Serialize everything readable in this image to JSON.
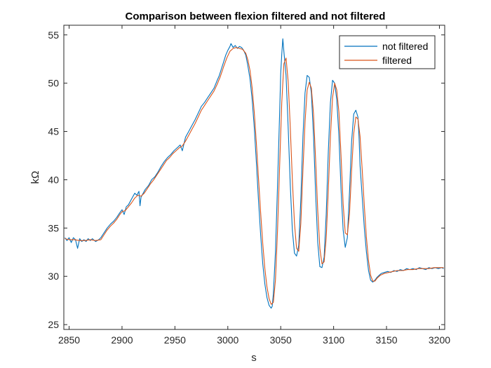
{
  "chart_data": {
    "type": "line",
    "title": "Comparison between flexion filtered and not filtered",
    "xlabel": "s",
    "ylabel": "kΩ",
    "xlim": [
      2845,
      3205
    ],
    "ylim": [
      24.5,
      56
    ],
    "xticks": [
      2850,
      2900,
      2950,
      3000,
      3050,
      3100,
      3150,
      3200
    ],
    "yticks": [
      25,
      30,
      35,
      40,
      45,
      50,
      55
    ],
    "grid": false,
    "legend_position": "top-right",
    "colors": {
      "not_filtered": "#0072BD",
      "filtered": "#D95319",
      "axis": "#262626"
    },
    "series": [
      {
        "name": "not filtered",
        "color": "#0072BD",
        "points": [
          [
            2846,
            34.0
          ],
          [
            2848,
            33.7
          ],
          [
            2850,
            34.0
          ],
          [
            2852,
            33.5
          ],
          [
            2854,
            34.0
          ],
          [
            2856,
            33.8
          ],
          [
            2858,
            32.9
          ],
          [
            2860,
            33.9
          ],
          [
            2862,
            33.6
          ],
          [
            2864,
            33.8
          ],
          [
            2866,
            33.6
          ],
          [
            2868,
            33.9
          ],
          [
            2870,
            33.7
          ],
          [
            2872,
            33.9
          ],
          [
            2875,
            33.6
          ],
          [
            2878,
            33.8
          ],
          [
            2880,
            34.0
          ],
          [
            2883,
            34.5
          ],
          [
            2886,
            35.0
          ],
          [
            2889,
            35.4
          ],
          [
            2892,
            35.7
          ],
          [
            2895,
            36.1
          ],
          [
            2898,
            36.6
          ],
          [
            2900,
            36.9
          ],
          [
            2902,
            36.4
          ],
          [
            2904,
            37.2
          ],
          [
            2906,
            37.4
          ],
          [
            2908,
            37.8
          ],
          [
            2910,
            38.2
          ],
          [
            2912,
            38.6
          ],
          [
            2914,
            38.4
          ],
          [
            2916,
            38.8
          ],
          [
            2917,
            37.3
          ],
          [
            2918,
            38.2
          ],
          [
            2920,
            38.6
          ],
          [
            2922,
            39.0
          ],
          [
            2925,
            39.4
          ],
          [
            2928,
            40.0
          ],
          [
            2931,
            40.3
          ],
          [
            2934,
            40.8
          ],
          [
            2937,
            41.4
          ],
          [
            2940,
            41.9
          ],
          [
            2943,
            42.3
          ],
          [
            2946,
            42.6
          ],
          [
            2949,
            43.0
          ],
          [
            2952,
            43.3
          ],
          [
            2955,
            43.6
          ],
          [
            2957,
            43.0
          ],
          [
            2960,
            44.4
          ],
          [
            2963,
            45.0
          ],
          [
            2966,
            45.6
          ],
          [
            2969,
            46.2
          ],
          [
            2972,
            46.9
          ],
          [
            2975,
            47.6
          ],
          [
            2978,
            48.0
          ],
          [
            2981,
            48.5
          ],
          [
            2984,
            49.0
          ],
          [
            2987,
            49.5
          ],
          [
            2990,
            50.3
          ],
          [
            2992,
            50.8
          ],
          [
            2994,
            51.5
          ],
          [
            2996,
            52.2
          ],
          [
            2998,
            52.9
          ],
          [
            3000,
            53.4
          ],
          [
            3002,
            53.8
          ],
          [
            3003,
            54.1
          ],
          [
            3005,
            53.7
          ],
          [
            3007,
            53.9
          ],
          [
            3009,
            53.6
          ],
          [
            3011,
            53.8
          ],
          [
            3013,
            53.7
          ],
          [
            3015,
            53.4
          ],
          [
            3017,
            52.9
          ],
          [
            3019,
            51.8
          ],
          [
            3021,
            50.4
          ],
          [
            3023,
            48.3
          ],
          [
            3025,
            45.4
          ],
          [
            3027,
            41.8
          ],
          [
            3029,
            37.9
          ],
          [
            3031,
            34.3
          ],
          [
            3033,
            31.3
          ],
          [
            3035,
            29.2
          ],
          [
            3037,
            27.8
          ],
          [
            3039,
            27.0
          ],
          [
            3041,
            26.7
          ],
          [
            3042,
            26.9
          ],
          [
            3043,
            28.2
          ],
          [
            3045,
            32.5
          ],
          [
            3047,
            39.5
          ],
          [
            3049,
            47.0
          ],
          [
            3050,
            51.0
          ],
          [
            3051,
            53.0
          ],
          [
            3052,
            54.6
          ],
          [
            3053,
            53.3
          ],
          [
            3055,
            50.8
          ],
          [
            3057,
            45.5
          ],
          [
            3059,
            39.5
          ],
          [
            3061,
            34.8
          ],
          [
            3063,
            32.4
          ],
          [
            3065,
            32.1
          ],
          [
            3067,
            33.2
          ],
          [
            3069,
            38.0
          ],
          [
            3071,
            44.5
          ],
          [
            3073,
            49.0
          ],
          [
            3075,
            50.8
          ],
          [
            3077,
            50.6
          ],
          [
            3079,
            49.0
          ],
          [
            3081,
            44.5
          ],
          [
            3083,
            38.5
          ],
          [
            3085,
            33.5
          ],
          [
            3087,
            31.0
          ],
          [
            3089,
            30.9
          ],
          [
            3091,
            32.0
          ],
          [
            3093,
            36.5
          ],
          [
            3095,
            43.0
          ],
          [
            3097,
            48.0
          ],
          [
            3099,
            50.3
          ],
          [
            3101,
            50.0
          ],
          [
            3103,
            48.3
          ],
          [
            3105,
            44.5
          ],
          [
            3107,
            39.0
          ],
          [
            3109,
            34.8
          ],
          [
            3111,
            33.0
          ],
          [
            3113,
            34.0
          ],
          [
            3115,
            38.8
          ],
          [
            3117,
            44.0
          ],
          [
            3119,
            46.8
          ],
          [
            3121,
            47.2
          ],
          [
            3123,
            46.5
          ],
          [
            3124,
            44.5
          ],
          [
            3125,
            41.5
          ],
          [
            3127,
            38.2
          ],
          [
            3129,
            35.0
          ],
          [
            3131,
            32.5
          ],
          [
            3133,
            30.6
          ],
          [
            3135,
            29.6
          ],
          [
            3137,
            29.4
          ],
          [
            3139,
            29.6
          ],
          [
            3141,
            29.9
          ],
          [
            3143,
            30.1
          ],
          [
            3145,
            30.3
          ],
          [
            3148,
            30.4
          ],
          [
            3151,
            30.5
          ],
          [
            3154,
            30.4
          ],
          [
            3157,
            30.6
          ],
          [
            3160,
            30.5
          ],
          [
            3163,
            30.7
          ],
          [
            3166,
            30.6
          ],
          [
            3169,
            30.8
          ],
          [
            3172,
            30.7
          ],
          [
            3175,
            30.8
          ],
          [
            3178,
            30.7
          ],
          [
            3181,
            30.9
          ],
          [
            3184,
            30.8
          ],
          [
            3187,
            30.7
          ],
          [
            3190,
            30.9
          ],
          [
            3193,
            30.8
          ],
          [
            3196,
            30.9
          ],
          [
            3199,
            30.8
          ],
          [
            3202,
            30.9
          ],
          [
            3204,
            30.8
          ]
        ]
      },
      {
        "name": "filtered",
        "color": "#D95319",
        "points": [
          [
            2846,
            33.9
          ],
          [
            2850,
            33.8
          ],
          [
            2855,
            33.8
          ],
          [
            2860,
            33.7
          ],
          [
            2865,
            33.7
          ],
          [
            2870,
            33.8
          ],
          [
            2875,
            33.7
          ],
          [
            2880,
            33.8
          ],
          [
            2883,
            34.3
          ],
          [
            2886,
            34.8
          ],
          [
            2889,
            35.2
          ],
          [
            2892,
            35.5
          ],
          [
            2895,
            35.9
          ],
          [
            2898,
            36.4
          ],
          [
            2900,
            36.7
          ],
          [
            2903,
            36.8
          ],
          [
            2906,
            37.2
          ],
          [
            2909,
            37.6
          ],
          [
            2912,
            38.1
          ],
          [
            2915,
            38.4
          ],
          [
            2918,
            38.3
          ],
          [
            2921,
            38.6
          ],
          [
            2924,
            39.1
          ],
          [
            2927,
            39.6
          ],
          [
            2930,
            40.0
          ],
          [
            2933,
            40.5
          ],
          [
            2936,
            41.0
          ],
          [
            2939,
            41.5
          ],
          [
            2942,
            42.0
          ],
          [
            2945,
            42.3
          ],
          [
            2948,
            42.7
          ],
          [
            2951,
            43.0
          ],
          [
            2954,
            43.3
          ],
          [
            2957,
            43.5
          ],
          [
            2960,
            44.0
          ],
          [
            2963,
            44.6
          ],
          [
            2966,
            45.2
          ],
          [
            2969,
            45.8
          ],
          [
            2972,
            46.5
          ],
          [
            2975,
            47.2
          ],
          [
            2978,
            47.7
          ],
          [
            2981,
            48.2
          ],
          [
            2984,
            48.7
          ],
          [
            2987,
            49.2
          ],
          [
            2990,
            49.9
          ],
          [
            2993,
            50.7
          ],
          [
            2996,
            51.7
          ],
          [
            2999,
            52.6
          ],
          [
            3002,
            53.3
          ],
          [
            3005,
            53.6
          ],
          [
            3008,
            53.7
          ],
          [
            3011,
            53.6
          ],
          [
            3014,
            53.5
          ],
          [
            3017,
            53.1
          ],
          [
            3019,
            52.4
          ],
          [
            3021,
            51.3
          ],
          [
            3023,
            49.5
          ],
          [
            3025,
            47.0
          ],
          [
            3027,
            43.8
          ],
          [
            3029,
            40.2
          ],
          [
            3031,
            36.6
          ],
          [
            3033,
            33.4
          ],
          [
            3035,
            30.8
          ],
          [
            3037,
            28.9
          ],
          [
            3039,
            27.7
          ],
          [
            3041,
            27.1
          ],
          [
            3043,
            27.3
          ],
          [
            3045,
            29.6
          ],
          [
            3047,
            34.8
          ],
          [
            3049,
            41.5
          ],
          [
            3051,
            48.0
          ],
          [
            3053,
            52.0
          ],
          [
            3055,
            52.6
          ],
          [
            3057,
            50.2
          ],
          [
            3059,
            45.5
          ],
          [
            3061,
            40.0
          ],
          [
            3063,
            35.5
          ],
          [
            3065,
            32.9
          ],
          [
            3067,
            32.6
          ],
          [
            3069,
            35.5
          ],
          [
            3071,
            41.0
          ],
          [
            3073,
            46.0
          ],
          [
            3075,
            49.3
          ],
          [
            3077,
            50.1
          ],
          [
            3079,
            49.5
          ],
          [
            3081,
            46.8
          ],
          [
            3083,
            42.0
          ],
          [
            3085,
            36.8
          ],
          [
            3087,
            32.9
          ],
          [
            3089,
            31.3
          ],
          [
            3091,
            31.5
          ],
          [
            3093,
            34.0
          ],
          [
            3095,
            39.0
          ],
          [
            3097,
            44.5
          ],
          [
            3099,
            48.5
          ],
          [
            3101,
            50.0
          ],
          [
            3103,
            49.3
          ],
          [
            3105,
            47.0
          ],
          [
            3107,
            42.5
          ],
          [
            3109,
            37.5
          ],
          [
            3111,
            34.5
          ],
          [
            3113,
            34.3
          ],
          [
            3115,
            36.5
          ],
          [
            3117,
            41.0
          ],
          [
            3119,
            44.8
          ],
          [
            3121,
            46.5
          ],
          [
            3123,
            46.3
          ],
          [
            3125,
            44.5
          ],
          [
            3127,
            41.0
          ],
          [
            3129,
            37.3
          ],
          [
            3131,
            34.0
          ],
          [
            3133,
            31.6
          ],
          [
            3135,
            30.1
          ],
          [
            3137,
            29.5
          ],
          [
            3139,
            29.5
          ],
          [
            3141,
            29.8
          ],
          [
            3144,
            30.1
          ],
          [
            3148,
            30.3
          ],
          [
            3152,
            30.4
          ],
          [
            3156,
            30.5
          ],
          [
            3160,
            30.6
          ],
          [
            3165,
            30.6
          ],
          [
            3170,
            30.7
          ],
          [
            3175,
            30.7
          ],
          [
            3180,
            30.8
          ],
          [
            3185,
            30.8
          ],
          [
            3190,
            30.8
          ],
          [
            3195,
            30.9
          ],
          [
            3200,
            30.9
          ],
          [
            3204,
            30.9
          ]
        ]
      }
    ]
  }
}
